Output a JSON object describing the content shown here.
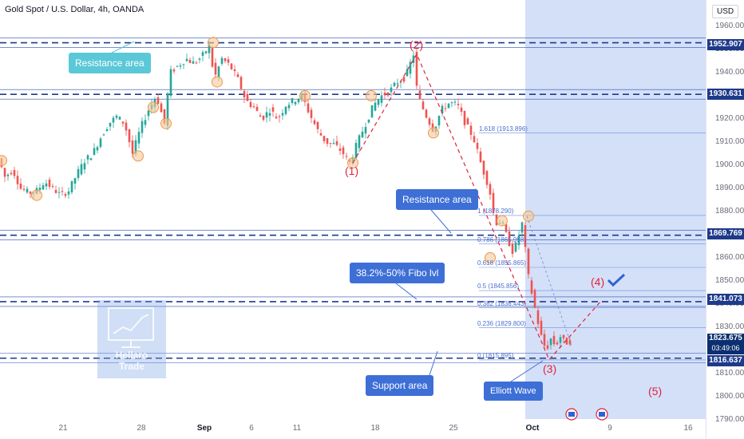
{
  "header": {
    "title": "Gold Spot / U.S. Dollar, 4h, OANDA"
  },
  "price_axis": {
    "currency_button": "USD",
    "ticks": [
      "1960.000",
      "1950.000",
      "1940.000",
      "1930.000",
      "1920.000",
      "1910.000",
      "1900.000",
      "1890.000",
      "1880.000",
      "1870.000",
      "1860.000",
      "1850.000",
      "1840.000",
      "1830.000",
      "1820.000",
      "1810.000",
      "1800.000",
      "1790.000"
    ],
    "labels": {
      "res_top": "1952.907",
      "res_mid": "1930.631",
      "res_869": "1869.769",
      "fibo_lvl": "1841.073",
      "current_price": "1823.675",
      "countdown": "03:49:06",
      "support": "1816.637"
    }
  },
  "time_axis": {
    "ticks": [
      "21",
      "28",
      "Sep",
      "6",
      "11",
      "18",
      "25",
      "Oct",
      "9",
      "16"
    ]
  },
  "annotations": {
    "resistance_top": "Resistance area",
    "resistance_mid": "Resistance area",
    "fibo_zone": "38.2%-50% Fibo lvl",
    "support": "Support area",
    "elliott": "Elliott Wave",
    "logo_line1": "Hellaro",
    "logo_line2": "Trade"
  },
  "waves": [
    "(1)",
    "(2)",
    "(3)",
    "(4)",
    "(5)"
  ],
  "fib_levels": [
    {
      "ratio": "1.618",
      "price": "1913.896"
    },
    {
      "ratio": "1",
      "price": "1878.290"
    },
    {
      "ratio": "0.786",
      "price": "1865.998"
    },
    {
      "ratio": "0.618",
      "price": "1855.865"
    },
    {
      "ratio": "0.5",
      "price": "1845.856"
    },
    {
      "ratio": "0.382",
      "price": "1838.443"
    },
    {
      "ratio": "0.236",
      "price": "1829.800"
    },
    {
      "ratio": "0",
      "price": "1815.895"
    }
  ],
  "colors": {
    "candle_up": "#26a69a",
    "candle_down": "#ef5350",
    "level_line": "#1e3a8a",
    "wave_red": "#e0233a",
    "projection_zone": "#c5d6f5"
  },
  "chart_data": {
    "type": "candlestick",
    "title": "Gold Spot / U.S. Dollar, 4h, OANDA",
    "xlabel": "",
    "ylabel": "",
    "ylim": [
      1785,
      1965
    ],
    "levels": [
      1952.907,
      1930.631,
      1869.769,
      1841.073,
      1816.637
    ],
    "last_price": 1823.675,
    "path_points": [
      {
        "t": 0,
        "p": 1903
      },
      {
        "t": 8,
        "p": 1895
      },
      {
        "t": 18,
        "p": 1898
      },
      {
        "t": 28,
        "p": 1890
      },
      {
        "t": 38,
        "p": 1888
      },
      {
        "t": 48,
        "p": 1889
      },
      {
        "t": 58,
        "p": 1893
      },
      {
        "t": 68,
        "p": 1890
      },
      {
        "t": 78,
        "p": 1887
      },
      {
        "t": 88,
        "p": 1889
      },
      {
        "t": 98,
        "p": 1896
      },
      {
        "t": 108,
        "p": 1902
      },
      {
        "t": 118,
        "p": 1905
      },
      {
        "t": 128,
        "p": 1912
      },
      {
        "t": 138,
        "p": 1918
      },
      {
        "t": 148,
        "p": 1921
      },
      {
        "t": 158,
        "p": 1918
      },
      {
        "t": 168,
        "p": 1905
      },
      {
        "t": 178,
        "p": 1916
      },
      {
        "t": 188,
        "p": 1924
      },
      {
        "t": 198,
        "p": 1930
      },
      {
        "t": 208,
        "p": 1918
      },
      {
        "t": 215,
        "p": 1940
      },
      {
        "t": 225,
        "p": 1943
      },
      {
        "t": 235,
        "p": 1946
      },
      {
        "t": 245,
        "p": 1944
      },
      {
        "t": 255,
        "p": 1947
      },
      {
        "t": 265,
        "p": 1952
      },
      {
        "t": 270,
        "p": 1937
      },
      {
        "t": 280,
        "p": 1946
      },
      {
        "t": 290,
        "p": 1943
      },
      {
        "t": 300,
        "p": 1937
      },
      {
        "t": 310,
        "p": 1928
      },
      {
        "t": 320,
        "p": 1925
      },
      {
        "t": 330,
        "p": 1920
      },
      {
        "t": 340,
        "p": 1924
      },
      {
        "t": 350,
        "p": 1920
      },
      {
        "t": 360,
        "p": 1926
      },
      {
        "t": 370,
        "p": 1928
      },
      {
        "t": 380,
        "p": 1930
      },
      {
        "t": 390,
        "p": 1922
      },
      {
        "t": 400,
        "p": 1915
      },
      {
        "t": 410,
        "p": 1910
      },
      {
        "t": 420,
        "p": 1909
      },
      {
        "t": 430,
        "p": 1906
      },
      {
        "t": 440,
        "p": 1901
      },
      {
        "t": 450,
        "p": 1910
      },
      {
        "t": 460,
        "p": 1918
      },
      {
        "t": 470,
        "p": 1926
      },
      {
        "t": 480,
        "p": 1930
      },
      {
        "t": 490,
        "p": 1932
      },
      {
        "t": 500,
        "p": 1936
      },
      {
        "t": 510,
        "p": 1938
      },
      {
        "t": 520,
        "p": 1948
      },
      {
        "t": 525,
        "p": 1930
      },
      {
        "t": 535,
        "p": 1922
      },
      {
        "t": 545,
        "p": 1915
      },
      {
        "t": 555,
        "p": 1924
      },
      {
        "t": 565,
        "p": 1927
      },
      {
        "t": 575,
        "p": 1926
      },
      {
        "t": 585,
        "p": 1918
      },
      {
        "t": 595,
        "p": 1912
      },
      {
        "t": 605,
        "p": 1900
      },
      {
        "t": 615,
        "p": 1890
      },
      {
        "t": 622,
        "p": 1875
      },
      {
        "t": 630,
        "p": 1876
      },
      {
        "t": 638,
        "p": 1868
      },
      {
        "t": 645,
        "p": 1862
      },
      {
        "t": 652,
        "p": 1870
      },
      {
        "t": 657,
        "p": 1876
      },
      {
        "t": 662,
        "p": 1855
      },
      {
        "t": 668,
        "p": 1845
      },
      {
        "t": 674,
        "p": 1835
      },
      {
        "t": 680,
        "p": 1826
      },
      {
        "t": 686,
        "p": 1820
      },
      {
        "t": 692,
        "p": 1825
      },
      {
        "t": 698,
        "p": 1822
      },
      {
        "t": 704,
        "p": 1826
      },
      {
        "t": 710,
        "p": 1823
      },
      {
        "t": 714,
        "p": 1824
      }
    ]
  }
}
